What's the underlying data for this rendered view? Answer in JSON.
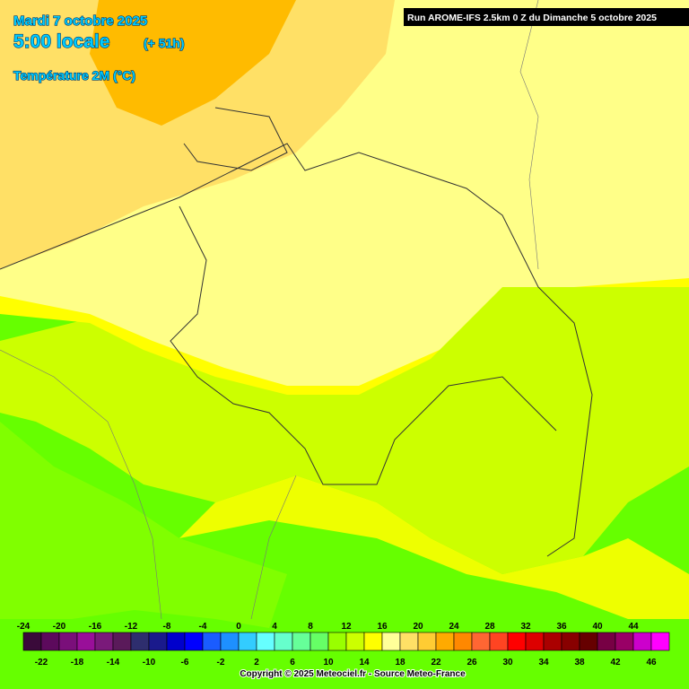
{
  "header": {
    "date": "Mardi 7 octobre 2025",
    "time": "5:00 locale",
    "lead": "(+ 51h)",
    "variable": "Température 2M (°C)",
    "run": "Run AROME-IFS 2.5km 0 Z du Dimanche 5 octobre 2025"
  },
  "legend": {
    "values": [
      -24,
      -22,
      -20,
      -18,
      -16,
      -14,
      -12,
      -10,
      -8,
      -6,
      -4,
      -2,
      0,
      2,
      4,
      6,
      8,
      10,
      12,
      14,
      16,
      18,
      20,
      22,
      24,
      26,
      28,
      30,
      32,
      34,
      36,
      38,
      40,
      42,
      44,
      46
    ],
    "colors": [
      "#3a0a3a",
      "#5c0a5c",
      "#7a0f7a",
      "#990f99",
      "#7a1a7a",
      "#5a1a5a",
      "#2e2e6e",
      "#1a1a8c",
      "#0000cc",
      "#0000ff",
      "#1a5cff",
      "#1e90ff",
      "#33ccff",
      "#66ffff",
      "#66ffcc",
      "#66ff99",
      "#66ff66",
      "#99ff00",
      "#ccff00",
      "#ffff00",
      "#ffff99",
      "#ffe066",
      "#ffcc33",
      "#ffaa00",
      "#ff8800",
      "#ff6633",
      "#ff4422",
      "#ff0000",
      "#dd0000",
      "#aa0000",
      "#880000",
      "#660000",
      "#770044",
      "#990066",
      "#cc00cc",
      "#ff00ff"
    ]
  },
  "copyright": "Copyright © 2025 Meteociel.fr - Source Meteo-France"
}
